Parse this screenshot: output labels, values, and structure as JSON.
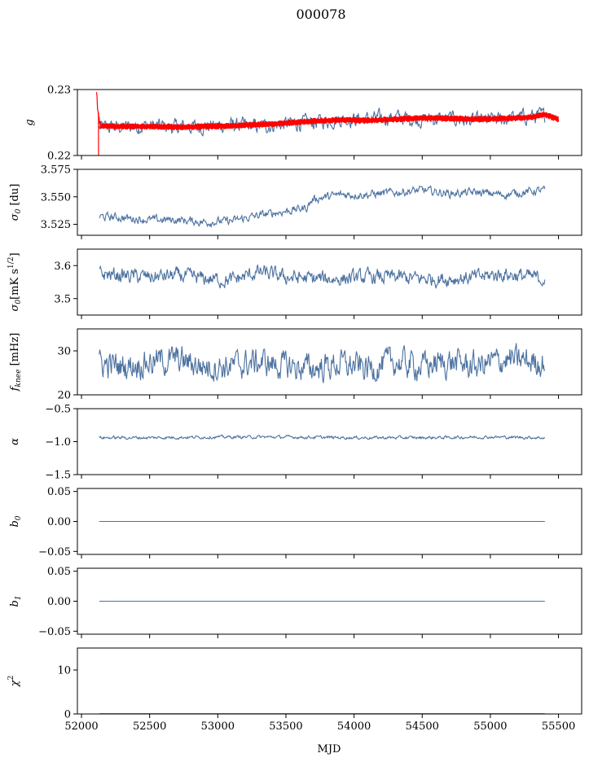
{
  "figure": {
    "title": "000078",
    "xlabel": "MJD",
    "xlim": [
      51970,
      55670
    ],
    "xticks": [
      52000,
      52500,
      53000,
      53500,
      54000,
      54500,
      55000,
      55500
    ],
    "xtick_labels": [
      "52000",
      "52500",
      "53000",
      "53500",
      "54000",
      "54500",
      "55000",
      "55500"
    ]
  },
  "colors": {
    "series": "#4c72a0",
    "model": "#ff0000",
    "axis": "#000000"
  },
  "chart_data": [
    {
      "type": "line",
      "id": "g",
      "ylabel": "g",
      "ylim": [
        0.22,
        0.23
      ],
      "yticks": [
        0.22,
        0.23
      ],
      "ytick_labels": [
        "0.22",
        "0.23"
      ],
      "series": [
        {
          "role": "observed",
          "noisy": true,
          "x": [
            52130,
            52300,
            52500,
            52700,
            52900,
            53100,
            53300,
            53500,
            53700,
            53900,
            54100,
            54300,
            54500,
            54700,
            54900,
            55100,
            55300,
            55400
          ],
          "y": [
            0.2242,
            0.2243,
            0.2245,
            0.2243,
            0.2244,
            0.2246,
            0.2244,
            0.2248,
            0.225,
            0.2255,
            0.2255,
            0.2258,
            0.2254,
            0.2256,
            0.2252,
            0.2255,
            0.226,
            0.226
          ]
        },
        {
          "role": "model",
          "band": true,
          "x": [
            52110,
            52120,
            52140,
            52300,
            52500,
            52700,
            52900,
            53100,
            53300,
            53500,
            53700,
            53900,
            54100,
            54300,
            54500,
            54700,
            54900,
            55100,
            55300,
            55400,
            55500
          ],
          "y": [
            0.23,
            0.2265,
            0.2245,
            0.2244,
            0.2244,
            0.2243,
            0.2244,
            0.2245,
            0.2247,
            0.2249,
            0.2252,
            0.2254,
            0.2253,
            0.2255,
            0.2257,
            0.2256,
            0.2255,
            0.2256,
            0.2258,
            0.2262,
            0.2255
          ]
        }
      ]
    },
    {
      "type": "line",
      "id": "sigma0-du",
      "ylabel": "σ0 [du]",
      "ylim": [
        3.515,
        3.575
      ],
      "yticks": [
        3.525,
        3.55,
        3.575
      ],
      "ytick_labels": [
        "3.525",
        "3.550",
        "3.575"
      ],
      "series": [
        {
          "role": "observed",
          "noisy": true,
          "x": [
            52130,
            52300,
            52500,
            52700,
            52900,
            53100,
            53300,
            53500,
            53650,
            53700,
            53900,
            54100,
            54300,
            54500,
            54700,
            54900,
            55100,
            55300,
            55400
          ],
          "y": [
            3.532,
            3.531,
            3.529,
            3.529,
            3.527,
            3.528,
            3.533,
            3.537,
            3.54,
            3.548,
            3.552,
            3.552,
            3.554,
            3.556,
            3.553,
            3.554,
            3.552,
            3.555,
            3.556
          ]
        }
      ]
    },
    {
      "type": "line",
      "id": "sigma0-mk",
      "ylabel": "σ0[mK s^1/2]",
      "ylim": [
        3.45,
        3.65
      ],
      "yticks": [
        3.5,
        3.6
      ],
      "ytick_labels": [
        "3.5",
        "3.6"
      ],
      "series": [
        {
          "role": "observed",
          "noisy": true,
          "x": [
            52130,
            52300,
            52500,
            52700,
            52900,
            53100,
            53300,
            53500,
            53700,
            53900,
            54100,
            54300,
            54500,
            54700,
            54900,
            55100,
            55300,
            55400
          ],
          "y": [
            3.575,
            3.57,
            3.565,
            3.57,
            3.56,
            3.555,
            3.58,
            3.565,
            3.56,
            3.56,
            3.565,
            3.565,
            3.56,
            3.56,
            3.565,
            3.575,
            3.565,
            3.56
          ]
        }
      ]
    },
    {
      "type": "line",
      "id": "fknee",
      "ylabel": "fknee [mHz]",
      "ylim": [
        20,
        35
      ],
      "yticks": [
        20,
        30
      ],
      "ytick_labels": [
        "20",
        "30"
      ],
      "series": [
        {
          "role": "observed",
          "noisy": true,
          "x": [
            52130,
            52300,
            52500,
            52700,
            52900,
            53100,
            53300,
            53500,
            53700,
            53900,
            54100,
            54300,
            54500,
            54700,
            54900,
            55100,
            55300,
            55400
          ],
          "y": [
            27,
            26.5,
            27.5,
            28,
            26.5,
            26.5,
            27.5,
            26.5,
            26,
            27,
            26,
            27.5,
            26.5,
            27.5,
            26.5,
            28,
            27.5,
            27.5
          ]
        }
      ]
    },
    {
      "type": "line",
      "id": "alpha",
      "ylabel": "α",
      "ylim": [
        -1.5,
        -0.5
      ],
      "yticks": [
        -1.5,
        -1.0,
        -0.5
      ],
      "ytick_labels": [
        "−1.5",
        "−1.0",
        "−0.5"
      ],
      "series": [
        {
          "role": "observed",
          "noisy": true,
          "x": [
            52130,
            52500,
            53000,
            53500,
            54000,
            54500,
            55000,
            55400
          ],
          "y": [
            -0.94,
            -0.94,
            -0.93,
            -0.93,
            -0.94,
            -0.94,
            -0.93,
            -0.94
          ]
        }
      ]
    },
    {
      "type": "line",
      "id": "b0",
      "ylabel": "b0",
      "ylim": [
        -0.055,
        0.055
      ],
      "yticks": [
        -0.05,
        0.0,
        0.05
      ],
      "ytick_labels": [
        "−0.05",
        "0.00",
        "0.05"
      ],
      "series": [
        {
          "role": "observed",
          "noisy": false,
          "x": [
            52130,
            55400
          ],
          "y": [
            0.0,
            0.0
          ]
        }
      ]
    },
    {
      "type": "line",
      "id": "b1",
      "ylabel": "b1",
      "ylim": [
        -0.055,
        0.055
      ],
      "yticks": [
        -0.05,
        0.0,
        0.05
      ],
      "ytick_labels": [
        "−0.05",
        "0.00",
        "0.05"
      ],
      "series": [
        {
          "role": "observed",
          "noisy": false,
          "x": [
            52130,
            55400
          ],
          "y": [
            0.0,
            0.0
          ]
        }
      ]
    },
    {
      "type": "line",
      "id": "chi2",
      "ylabel": "χ²",
      "ylim": [
        0,
        15
      ],
      "yticks": [
        0,
        10
      ],
      "ytick_labels": [
        "0",
        "10"
      ],
      "series": [
        {
          "role": "observed",
          "noisy": false,
          "x": [
            52130,
            55400
          ],
          "y": [
            0.05,
            0.05
          ]
        }
      ]
    }
  ]
}
